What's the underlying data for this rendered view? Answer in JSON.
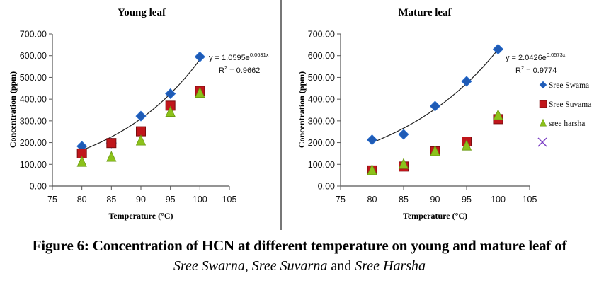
{
  "chart_data": [
    {
      "type": "scatter",
      "title": "Young leaf",
      "xlabel": "Temperature  (°C)",
      "ylabel": "Concentration  (ppm)",
      "xlim": [
        75,
        105
      ],
      "ylim": [
        0,
        700
      ],
      "xticks": [
        75,
        80,
        85,
        90,
        95,
        100,
        105
      ],
      "yticks": [
        "0.00",
        "100.00",
        "200.00",
        "300.00",
        "400.00",
        "500.00",
        "600.00",
        "700.00"
      ],
      "grid": false,
      "series": [
        {
          "name": "Sree Swarna",
          "marker": "diamond",
          "color": "#1f5bb5",
          "x": [
            80,
            85,
            90,
            95,
            100
          ],
          "y": [
            183,
            198,
            322,
            425,
            595
          ]
        },
        {
          "name": "Sree Suvarna",
          "marker": "square",
          "color": "#c0161b",
          "x": [
            80,
            85,
            90,
            95,
            100
          ],
          "y": [
            150,
            198,
            252,
            370,
            438
          ]
        },
        {
          "name": "sree harsha",
          "marker": "triangle",
          "color": "#8cc21a",
          "x": [
            80,
            85,
            90,
            95,
            100
          ],
          "y": [
            110,
            133,
            208,
            340,
            428
          ]
        }
      ],
      "trendline": {
        "series": "Sree Swarna",
        "type": "exponential",
        "a": 1.0595,
        "b": 0.0631,
        "x_range": [
          80,
          100
        ],
        "equation": "y = 1.0595e",
        "exponent": "0.0631x",
        "r2_label": "R",
        "r2_value": " = 0.9662"
      }
    },
    {
      "type": "scatter",
      "title": "Mature leaf",
      "xlabel": "Temperature  (°C)",
      "ylabel": "Concentration  (ppm)",
      "xlim": [
        75,
        105
      ],
      "ylim": [
        0,
        700
      ],
      "xticks": [
        75,
        80,
        85,
        90,
        95,
        100,
        105
      ],
      "yticks": [
        "0.00",
        "100.00",
        "200.00",
        "300.00",
        "400.00",
        "500.00",
        "600.00",
        "700.00"
      ],
      "grid": false,
      "legend_position": "right",
      "series": [
        {
          "name": "Sree Swarna",
          "legend_label": "Sree Swama",
          "marker": "diamond",
          "color": "#1f5bb5",
          "x": [
            80,
            85,
            90,
            95,
            100
          ],
          "y": [
            213,
            238,
            368,
            482,
            630
          ]
        },
        {
          "name": "Sree Suvarna",
          "legend_label": "Sree Suvama",
          "marker": "square",
          "color": "#c0161b",
          "x": [
            80,
            85,
            90,
            95,
            100
          ],
          "y": [
            72,
            90,
            160,
            205,
            308
          ]
        },
        {
          "name": "sree harsha",
          "legend_label": "sree harsha",
          "marker": "triangle",
          "color": "#8cc21a",
          "x": [
            80,
            85,
            90,
            95,
            100
          ],
          "y": [
            72,
            100,
            160,
            185,
            325
          ]
        }
      ],
      "extra_legend_marker": {
        "marker": "x",
        "color": "#7b3fc4",
        "label": ""
      },
      "trendline": {
        "series": "Sree Swarna",
        "type": "exponential",
        "a": 2.0426,
        "b": 0.0573,
        "x_range": [
          80,
          100
        ],
        "equation": "y = 2.0426e",
        "exponent": "0.0573x",
        "r2_label": "R",
        "r2_value": " = 0.9774"
      }
    }
  ],
  "caption": {
    "line1": "Figure 6: Concentration of HCN at different temperature on young and mature leaf of",
    "name1": "Sree Swarna",
    "sep1": ", ",
    "name2": "Sree Suvarna",
    "sep2": " and ",
    "name3": "Sree Harsha"
  }
}
